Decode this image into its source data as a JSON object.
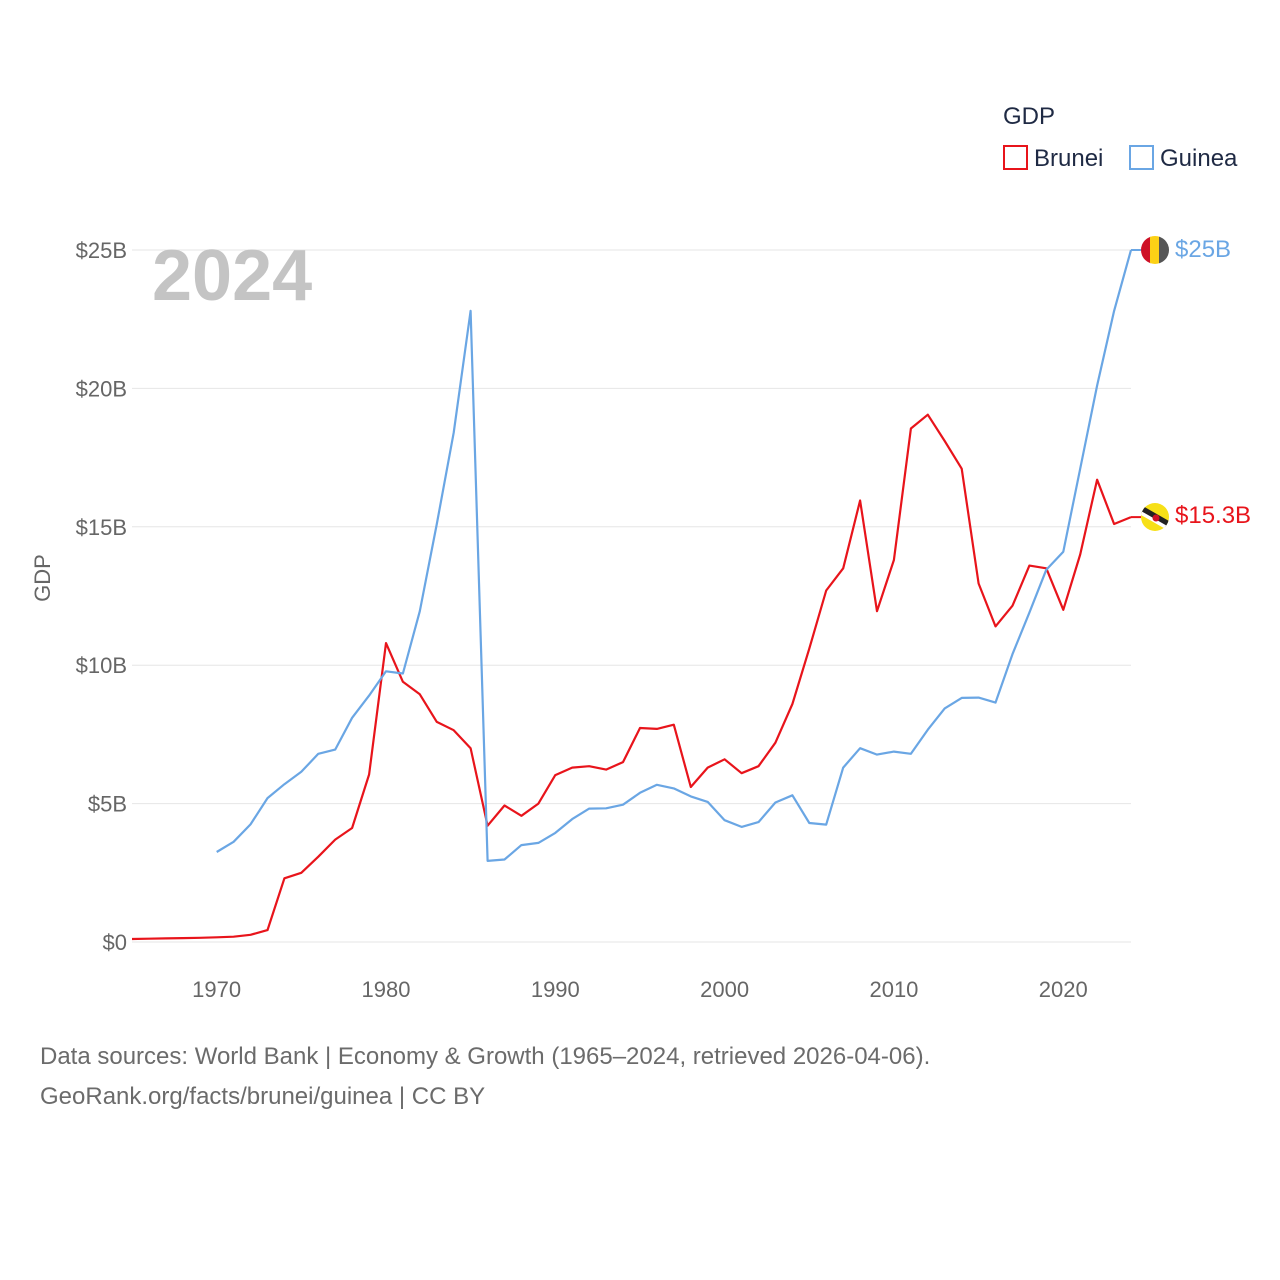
{
  "colors": {
    "brunei": "#e8141b",
    "guinea": "#6aa6e4",
    "grid": "#e6e6e6",
    "year": "#c4c4c4"
  },
  "icons": {
    "brunei_flag": "brunei-flag-icon",
    "guinea_flag": "guinea-flag-icon"
  },
  "chart_data": {
    "type": "line",
    "title": "",
    "xlabel": "",
    "ylabel": "GDP",
    "year_label": "2024",
    "legend_title": "GDP",
    "legend_position": "top-right",
    "xlim": [
      1965,
      2024
    ],
    "ylim": [
      0,
      25
    ],
    "x_ticks": [
      1970,
      1980,
      1990,
      2000,
      2010,
      2020
    ],
    "x_tick_labels": [
      "1970",
      "1980",
      "1990",
      "2000",
      "2010",
      "2020"
    ],
    "y_ticks": [
      0,
      5,
      10,
      15,
      20,
      25
    ],
    "y_tick_labels": [
      "$0",
      "$5B",
      "$10B",
      "$15B",
      "$20B",
      "$25B"
    ],
    "grid": true,
    "series": [
      {
        "name": "Brunei",
        "end_label": "$15.3B",
        "points": [
          [
            1965,
            0.11
          ],
          [
            1966,
            0.12
          ],
          [
            1967,
            0.13
          ],
          [
            1968,
            0.14
          ],
          [
            1969,
            0.15
          ],
          [
            1970,
            0.17
          ],
          [
            1971,
            0.19
          ],
          [
            1972,
            0.26
          ],
          [
            1973,
            0.43
          ],
          [
            1974,
            2.3
          ],
          [
            1975,
            2.5
          ],
          [
            1976,
            3.08
          ],
          [
            1977,
            3.7
          ],
          [
            1978,
            4.12
          ],
          [
            1979,
            6.05
          ],
          [
            1980,
            10.8
          ],
          [
            1981,
            9.4
          ],
          [
            1982,
            8.95
          ],
          [
            1983,
            7.95
          ],
          [
            1984,
            7.65
          ],
          [
            1985,
            7.0
          ],
          [
            1986,
            4.2
          ],
          [
            1987,
            4.93
          ],
          [
            1988,
            4.56
          ],
          [
            1989,
            5.0
          ],
          [
            1990,
            6.03
          ],
          [
            1991,
            6.3
          ],
          [
            1992,
            6.35
          ],
          [
            1993,
            6.23
          ],
          [
            1994,
            6.5
          ],
          [
            1995,
            7.73
          ],
          [
            1996,
            7.7
          ],
          [
            1997,
            7.85
          ],
          [
            1998,
            5.6
          ],
          [
            1999,
            6.3
          ],
          [
            2000,
            6.6
          ],
          [
            2001,
            6.1
          ],
          [
            2002,
            6.35
          ],
          [
            2003,
            7.2
          ],
          [
            2004,
            8.6
          ],
          [
            2005,
            10.6
          ],
          [
            2006,
            12.7
          ],
          [
            2007,
            13.5
          ],
          [
            2008,
            15.95
          ],
          [
            2009,
            11.95
          ],
          [
            2010,
            13.8
          ],
          [
            2011,
            18.55
          ],
          [
            2012,
            19.05
          ],
          [
            2013,
            18.1
          ],
          [
            2014,
            17.1
          ],
          [
            2015,
            12.95
          ],
          [
            2016,
            11.4
          ],
          [
            2017,
            12.15
          ],
          [
            2018,
            13.6
          ],
          [
            2019,
            13.5
          ],
          [
            2020,
            12.0
          ],
          [
            2021,
            14.0
          ],
          [
            2022,
            16.7
          ],
          [
            2023,
            15.1
          ],
          [
            2024,
            15.35
          ]
        ]
      },
      {
        "name": "Guinea",
        "end_label": "$25B",
        "points": [
          [
            1970,
            3.25
          ],
          [
            1971,
            3.62
          ],
          [
            1972,
            4.25
          ],
          [
            1973,
            5.2
          ],
          [
            1974,
            5.7
          ],
          [
            1975,
            6.15
          ],
          [
            1976,
            6.8
          ],
          [
            1977,
            6.95
          ],
          [
            1978,
            8.1
          ],
          [
            1979,
            8.9
          ],
          [
            1980,
            9.78
          ],
          [
            1981,
            9.7
          ],
          [
            1982,
            11.95
          ],
          [
            1983,
            15.1
          ],
          [
            1984,
            18.4
          ],
          [
            1985,
            22.8
          ],
          [
            1986,
            2.93
          ],
          [
            1987,
            2.98
          ],
          [
            1988,
            3.5
          ],
          [
            1989,
            3.58
          ],
          [
            1990,
            3.94
          ],
          [
            1991,
            4.44
          ],
          [
            1992,
            4.82
          ],
          [
            1993,
            4.83
          ],
          [
            1994,
            4.96
          ],
          [
            1995,
            5.39
          ],
          [
            1996,
            5.68
          ],
          [
            1997,
            5.55
          ],
          [
            1998,
            5.26
          ],
          [
            1999,
            5.06
          ],
          [
            2000,
            4.4
          ],
          [
            2001,
            4.16
          ],
          [
            2002,
            4.33
          ],
          [
            2003,
            5.04
          ],
          [
            2004,
            5.3
          ],
          [
            2005,
            4.3
          ],
          [
            2006,
            4.24
          ],
          [
            2007,
            6.3
          ],
          [
            2008,
            7.0
          ],
          [
            2009,
            6.77
          ],
          [
            2010,
            6.88
          ],
          [
            2011,
            6.8
          ],
          [
            2012,
            7.67
          ],
          [
            2013,
            8.44
          ],
          [
            2014,
            8.82
          ],
          [
            2015,
            8.83
          ],
          [
            2016,
            8.65
          ],
          [
            2017,
            10.4
          ],
          [
            2018,
            11.9
          ],
          [
            2019,
            13.45
          ],
          [
            2020,
            14.1
          ],
          [
            2021,
            17.1
          ],
          [
            2022,
            20.1
          ],
          [
            2023,
            22.8
          ],
          [
            2024,
            25.0
          ]
        ]
      }
    ]
  },
  "footer": {
    "line1": "Data sources: World Bank | Economy & Growth (1965–2024, retrieved 2026-04-06).",
    "line2": "GeoRank.org/facts/brunei/guinea | CC BY"
  }
}
